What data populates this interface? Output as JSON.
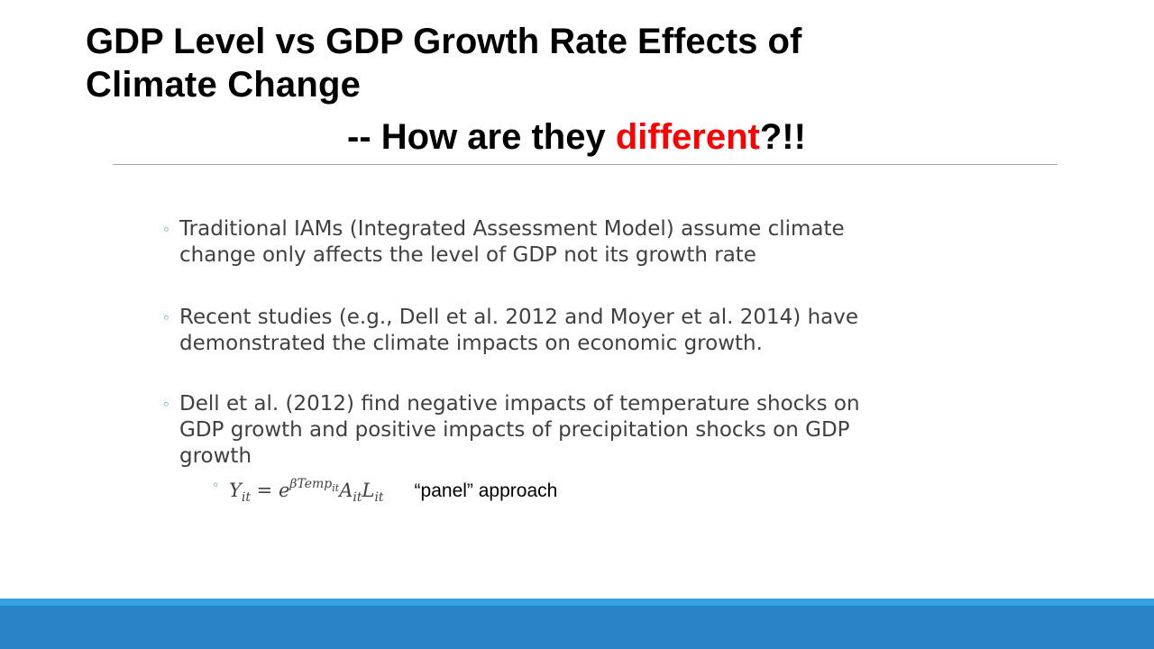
{
  "title": {
    "line1": "GDP Level vs GDP Growth Rate Effects of",
    "line2": "Climate Change",
    "subtitle_prefix": "-- How are they ",
    "subtitle_highlight": "different",
    "subtitle_suffix": "?!!"
  },
  "bullets": [
    {
      "marker": "◦",
      "text": "Traditional IAMs (Integrated Assessment Model) assume climate change only affects the level of GDP not its growth rate"
    },
    {
      "marker": "◦",
      "text": "Recent studies (e.g., Dell et al. 2012 and Moyer et al. 2014) have demonstrated the climate impacts on economic growth."
    },
    {
      "marker": "◦",
      "text": "Dell et al. (2012) find negative impacts of temperature shocks on GDP growth and positive impacts of precipitation shocks on GDP growth",
      "sub_bullet": {
        "marker": "◦",
        "formula": {
          "lhs_var": "Y",
          "lhs_sub": "it",
          "equals": " = ",
          "base": "e",
          "exp": "βTemp",
          "exp_sub": "it",
          "factor1": "A",
          "factor1_sub": "it",
          "factor2": "L",
          "factor2_sub": "it"
        },
        "label": "“panel” approach"
      }
    }
  ],
  "colors": {
    "title": "#000000",
    "highlight": "#ff0000",
    "body_text": "#404040",
    "bullet_marker": "#1f7fc4",
    "rule": "#a6a6a6",
    "bottom_bar": "#2a83c6",
    "bottom_bar_accent": "#36a2e3"
  }
}
